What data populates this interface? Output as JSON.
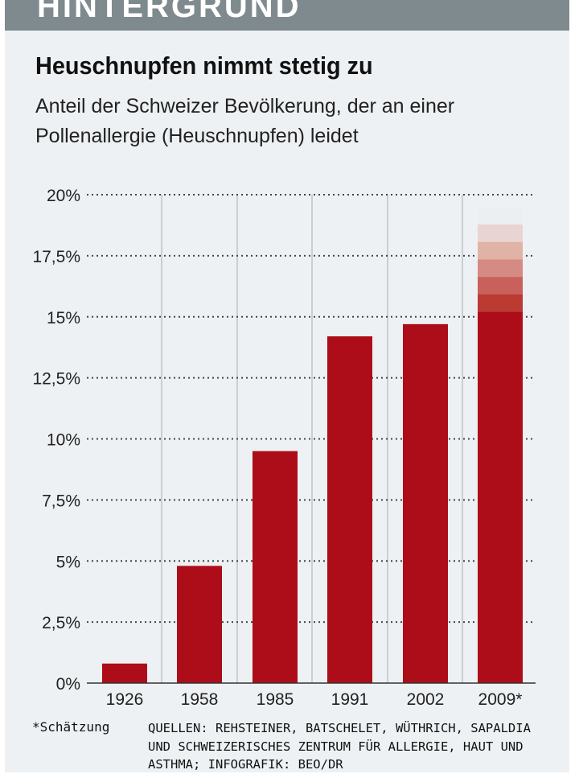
{
  "header": {
    "label": "HINTERGRUND"
  },
  "chart_data": {
    "type": "bar",
    "title": "Heuschnupfen nimmt stetig zu",
    "subtitle": "Anteil der Schweizer Bevölkerung, der an einer Pollenallergie (Heuschnupfen) leidet",
    "xlabel": "",
    "ylabel": "",
    "categories": [
      "1926",
      "1958",
      "1985",
      "1991",
      "2002",
      "2009*"
    ],
    "values": [
      0.8,
      4.8,
      9.5,
      14.2,
      14.7,
      15.2
    ],
    "estimate_range": [
      15.2,
      19.5
    ],
    "ylim": [
      0,
      20
    ],
    "y_ticks": [
      0,
      2.5,
      5,
      7.5,
      10,
      12.5,
      15,
      17.5,
      20
    ],
    "y_tick_labels": [
      "0%",
      "2,5%",
      "5%",
      "7,5%",
      "10%",
      "12,5%",
      "15%",
      "17,5%",
      "20%"
    ],
    "grid": true,
    "bar_color": "#ad0d19",
    "gradient_colors": [
      "#bb3a32",
      "#c9605c",
      "#d68a84",
      "#e0b3a6",
      "#e8d5d3",
      "#eceff1"
    ]
  },
  "footer": {
    "footnote": "*Schätzung",
    "sources": "QUELLEN: REHSTEINER, BATSCHELET, WÜTHRICH, SAPALDIA\nUND SCHWEIZERISCHES ZENTRUM FÜR ALLERGIE, HAUT UND\nASTHMA; INFOGRAFIK: BEO/DR"
  }
}
